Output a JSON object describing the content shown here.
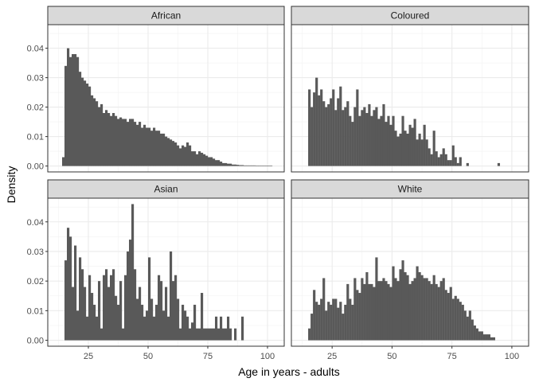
{
  "chart_data": {
    "type": "bar",
    "subtype": "faceted-histogram",
    "xlabel": "Age in years - adults",
    "ylabel": "Density",
    "facet_layout": "2x2",
    "shared_x": {
      "ticks": [
        25,
        50,
        75,
        100
      ],
      "xlim": [
        8,
        107
      ]
    },
    "bar_color": "#595959",
    "strip_fill": "#d9d9d9",
    "panels": [
      {
        "name": "African",
        "ylim": [
          -0.002,
          0.048
        ],
        "yticks": [
          "0.00",
          "0.01",
          "0.02",
          "0.03",
          "0.04"
        ],
        "x_start": 14,
        "values": [
          0.003,
          0.034,
          0.04,
          0.037,
          0.038,
          0.038,
          0.037,
          0.032,
          0.03,
          0.029,
          0.028,
          0.027,
          0.024,
          0.023,
          0.022,
          0.02,
          0.021,
          0.018,
          0.019,
          0.018,
          0.017,
          0.018,
          0.017,
          0.016,
          0.0165,
          0.016,
          0.016,
          0.015,
          0.016,
          0.016,
          0.015,
          0.014,
          0.015,
          0.013,
          0.014,
          0.013,
          0.013,
          0.012,
          0.013,
          0.012,
          0.012,
          0.011,
          0.011,
          0.01,
          0.0095,
          0.009,
          0.0085,
          0.008,
          0.007,
          0.006,
          0.007,
          0.0065,
          0.008,
          0.007,
          0.005,
          0.005,
          0.004,
          0.005,
          0.0045,
          0.004,
          0.0035,
          0.003,
          0.003,
          0.0025,
          0.002,
          0.002,
          0.0015,
          0.001,
          0.001,
          0.0008,
          0.0008,
          0.0005,
          0.0005,
          0.0004,
          0.0003,
          0.0003,
          0.0002,
          0.0002,
          0.0002,
          0.0002,
          0.0002,
          0.0001,
          0.0001,
          0.0001,
          0.0001,
          0.0001,
          0.0001,
          0.0001
        ]
      },
      {
        "name": "Coloured",
        "ylim": [
          -0.002,
          0.048
        ],
        "yticks": [
          "0.00",
          "0.01",
          "0.02",
          "0.03",
          "0.04"
        ],
        "x_start": 15,
        "values": [
          0.026,
          0.02,
          0.025,
          0.03,
          0.024,
          0.026,
          0.022,
          0.02,
          0.021,
          0.023,
          0.026,
          0.019,
          0.023,
          0.027,
          0.019,
          0.02,
          0.022,
          0.017,
          0.015,
          0.02,
          0.026,
          0.017,
          0.019,
          0.02,
          0.018,
          0.021,
          0.017,
          0.019,
          0.02,
          0.016,
          0.017,
          0.021,
          0.015,
          0.017,
          0.014,
          0.017,
          0.012,
          0.01,
          0.011,
          0.017,
          0.012,
          0.011,
          0.014,
          0.013,
          0.016,
          0.009,
          0.011,
          0.009,
          0.014,
          0.009,
          0.006,
          0.004,
          0.012,
          0.005,
          0.003,
          0.004,
          0.006,
          0.004,
          0.002,
          0.002,
          0.007,
          0.003,
          0.001,
          0.003,
          0.0,
          0.0,
          0.001,
          0.0,
          0.0,
          0.0,
          0.0,
          0.0,
          0.0,
          0.0,
          0.0,
          0.0,
          0.0,
          0.0,
          0.0,
          0.001
        ]
      },
      {
        "name": "Asian",
        "ylim": [
          -0.002,
          0.048
        ],
        "yticks": [
          "0.00",
          "0.01",
          "0.02",
          "0.03",
          "0.04"
        ],
        "x_start": 15,
        "values": [
          0.027,
          0.038,
          0.035,
          0.018,
          0.032,
          0.01,
          0.028,
          0.024,
          0.018,
          0.008,
          0.022,
          0.016,
          0.012,
          0.008,
          0.02,
          0.004,
          0.022,
          0.024,
          0.018,
          0.022,
          0.024,
          0.015,
          0.012,
          0.02,
          0.004,
          0.022,
          0.03,
          0.034,
          0.046,
          0.024,
          0.014,
          0.018,
          0.012,
          0.008,
          0.01,
          0.028,
          0.014,
          0.008,
          0.012,
          0.022,
          0.02,
          0.01,
          0.018,
          0.008,
          0.03,
          0.02,
          0.022,
          0.014,
          0.004,
          0.012,
          0.01,
          0.008,
          0.004,
          0.006,
          0.012,
          0.004,
          0.004,
          0.016,
          0.004,
          0.004,
          0.004,
          0.004,
          0.004,
          0.008,
          0.004,
          0.008,
          0.004,
          0.004,
          0.008,
          0.004,
          0.0,
          0.004,
          0.0,
          0.0,
          0.008
        ]
      },
      {
        "name": "White",
        "ylim": [
          -0.002,
          0.048
        ],
        "yticks": [
          "0.00",
          "0.01",
          "0.02",
          "0.03",
          "0.04"
        ],
        "x_start": 15,
        "values": [
          0.004,
          0.009,
          0.017,
          0.013,
          0.012,
          0.014,
          0.021,
          0.01,
          0.013,
          0.012,
          0.014,
          0.014,
          0.011,
          0.013,
          0.009,
          0.012,
          0.019,
          0.014,
          0.012,
          0.021,
          0.017,
          0.016,
          0.021,
          0.019,
          0.023,
          0.019,
          0.019,
          0.018,
          0.028,
          0.02,
          0.02,
          0.021,
          0.02,
          0.019,
          0.018,
          0.025,
          0.021,
          0.02,
          0.024,
          0.027,
          0.023,
          0.022,
          0.019,
          0.02,
          0.021,
          0.025,
          0.023,
          0.022,
          0.021,
          0.021,
          0.02,
          0.019,
          0.022,
          0.019,
          0.018,
          0.02,
          0.021,
          0.017,
          0.016,
          0.018,
          0.014,
          0.015,
          0.014,
          0.013,
          0.012,
          0.01,
          0.008,
          0.01,
          0.007,
          0.005,
          0.004,
          0.003,
          0.003,
          0.002,
          0.002,
          0.002,
          0.001,
          0.001
        ]
      }
    ]
  }
}
